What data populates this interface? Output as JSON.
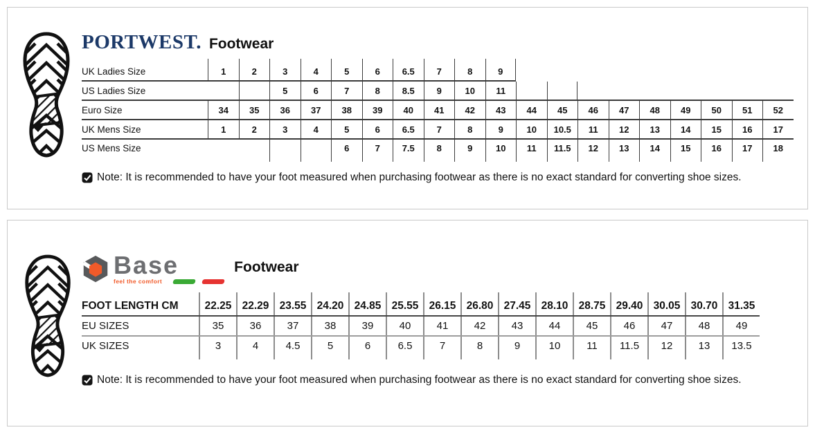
{
  "colors": {
    "portwest_navy": "#1c3968",
    "base_gray": "#6d6e71",
    "base_orange": "#f15a29",
    "flag_green": "#3aaa35",
    "flag_red": "#e63331",
    "panel_border": "#c9c9c9"
  },
  "icons": {
    "panel_icon": "boot-sole-tread-icon",
    "note_icon": "checked-checkbox-icon",
    "base_logo_icon": "hex-nut-icon"
  },
  "panel1": {
    "brand": "PORTWEST.",
    "product_line": "Footwear",
    "note": "Note: It is recommended to have your foot measured when purchasing footwear as there is no exact standard for converting shoe sizes.",
    "table": {
      "columns": 19,
      "rows": [
        {
          "label": "UK Ladies Size",
          "cells": [
            "1",
            "2",
            "3",
            "4",
            "5",
            "6",
            "6.5",
            "7",
            "8",
            "9",
            null,
            null,
            null,
            null,
            null,
            null,
            null,
            null,
            null
          ]
        },
        {
          "label": "US Ladies Size",
          "cells": [
            null,
            "",
            "5",
            "6",
            "7",
            "8",
            "8.5",
            "9",
            "10",
            "11",
            "",
            "",
            null,
            null,
            null,
            null,
            null,
            null,
            null
          ]
        },
        {
          "label": "Euro Size",
          "cells": [
            "34",
            "35",
            "36",
            "37",
            "38",
            "39",
            "40",
            "41",
            "42",
            "43",
            "44",
            "45",
            "46",
            "47",
            "48",
            "49",
            "50",
            "51",
            "52"
          ]
        },
        {
          "label": "UK Mens Size",
          "cells": [
            "1",
            "2",
            "3",
            "4",
            "5",
            "6",
            "6.5",
            "7",
            "8",
            "9",
            "10",
            "10.5",
            "11",
            "12",
            "13",
            "14",
            "15",
            "16",
            "17"
          ]
        },
        {
          "label": "US Mens Size",
          "cells": [
            null,
            null,
            "",
            "",
            "6",
            "7",
            "7.5",
            "8",
            "9",
            "10",
            "11",
            "11.5",
            "12",
            "13",
            "14",
            "15",
            "16",
            "17",
            "18"
          ]
        }
      ]
    }
  },
  "panel2": {
    "brand": "Base",
    "tagline": "feel the comfort",
    "product_line": "Footwear",
    "note": "Note: It is recommended to have your foot measured when purchasing footwear as there is no exact standard for converting shoe sizes.",
    "table": {
      "columns": 15,
      "rows": [
        {
          "label": "FOOT LENGTH CM",
          "bold": true,
          "cells": [
            "22.25",
            "22.29",
            "23.55",
            "24.20",
            "24.85",
            "25.55",
            "26.15",
            "26.80",
            "27.45",
            "28.10",
            "28.75",
            "29.40",
            "30.05",
            "30.70",
            "31.35"
          ]
        },
        {
          "label": "EU SIZES",
          "cells": [
            "35",
            "36",
            "37",
            "38",
            "39",
            "40",
            "41",
            "42",
            "43",
            "44",
            "45",
            "46",
            "47",
            "48",
            "49"
          ]
        },
        {
          "label": "UK SIZES",
          "cells": [
            "3",
            "4",
            "4.5",
            "5",
            "6",
            "6.5",
            "7",
            "8",
            "9",
            "10",
            "11",
            "11.5",
            "12",
            "13",
            "13.5"
          ]
        }
      ]
    }
  }
}
